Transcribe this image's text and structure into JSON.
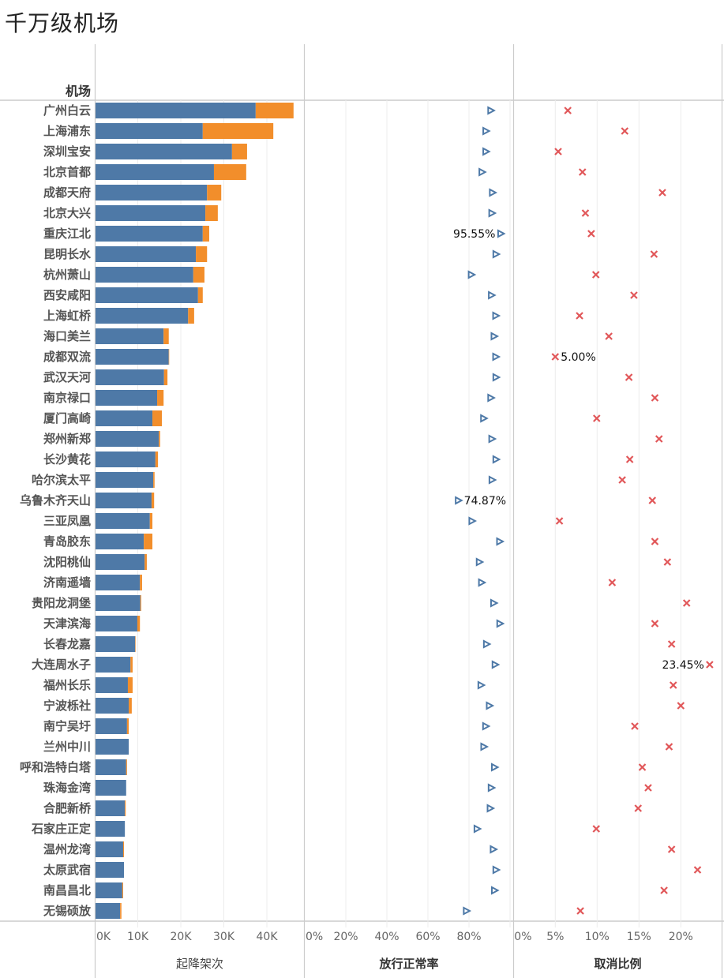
{
  "title": "千万级机场",
  "chart_data": [
    {
      "type": "bar",
      "stacked": true,
      "orientation": "horizontal",
      "title": "千万级机场",
      "row_header": "机场",
      "xlabel": "起降架次",
      "xlim": [
        0,
        48000
      ],
      "xticks": [
        "0K",
        "10K",
        "20K",
        "30K",
        "40K"
      ],
      "grid": true,
      "categories": [
        "广州白云",
        "上海浦东",
        "深圳宝安",
        "北京首都",
        "成都天府",
        "北京大兴",
        "重庆江北",
        "昆明长水",
        "杭州萧山",
        "西安咸阳",
        "上海虹桥",
        "海口美兰",
        "成都双流",
        "武汉天河",
        "南京禄口",
        "厦门高崎",
        "郑州新郑",
        "长沙黄花",
        "哈尔滨太平",
        "乌鲁木齐天山",
        "三亚凤凰",
        "青岛胶东",
        "沈阳桃仙",
        "济南遥墙",
        "贵阳龙洞堡",
        "天津滨海",
        "长春龙嘉",
        "大连周水子",
        "福州长乐",
        "宁波栎社",
        "南宁吴圩",
        "兰州中川",
        "呼和浩特白塔",
        "珠海金湾",
        "合肥新桥",
        "石家庄正定",
        "温州龙湾",
        "太原武宿",
        "南昌昌北",
        "无锡硕放"
      ],
      "series": [
        {
          "name": "series-1",
          "color": "#4e79a7",
          "values": [
            37400,
            25100,
            31900,
            27700,
            26100,
            25700,
            25100,
            23500,
            22900,
            24000,
            21700,
            16000,
            17200,
            16100,
            14500,
            13400,
            14900,
            14100,
            13600,
            13200,
            12800,
            11400,
            11600,
            10500,
            10600,
            9900,
            9400,
            8300,
            7700,
            7900,
            7500,
            7900,
            7300,
            7300,
            7000,
            7000,
            6600,
            6800,
            6400,
            5900
          ]
        },
        {
          "name": "series-2",
          "color": "#f28e2b",
          "values": [
            8800,
            16400,
            3500,
            7500,
            3300,
            2900,
            1500,
            2600,
            2600,
            1100,
            1400,
            1200,
            100,
            800,
            1500,
            2200,
            300,
            600,
            300,
            600,
            600,
            2000,
            500,
            500,
            200,
            600,
            100,
            500,
            1100,
            700,
            400,
            0,
            200,
            0,
            200,
            0,
            200,
            0,
            200,
            300
          ]
        }
      ]
    },
    {
      "type": "scatter",
      "xlabel": "放行正常率",
      "xlim": [
        0,
        101.5
      ],
      "xticks": [
        "0%",
        "20%",
        "40%",
        "60%",
        "80%"
      ],
      "grid": true,
      "marker": "triangle-right",
      "color": "#4e79a7",
      "values": [
        90.7,
        88.3,
        88.3,
        86.4,
        91.5,
        91.2,
        95.55,
        93.2,
        81.2,
        91.0,
        93.1,
        92.3,
        93.1,
        93.2,
        90.7,
        87.2,
        91.2,
        93.2,
        91.3,
        74.87,
        81.5,
        95.0,
        85.1,
        86.2,
        92.1,
        95.1,
        88.6,
        92.8,
        85.9,
        90.0,
        88.2,
        87.3,
        92.5,
        90.9,
        90.4,
        84.0,
        91.9,
        93.2,
        92.5,
        78.8
      ],
      "annotations": [
        {
          "category": "重庆江北",
          "text": "95.55%",
          "side": "left"
        },
        {
          "category": "乌鲁木齐天山",
          "text": "74.87%",
          "side": "right"
        }
      ]
    },
    {
      "type": "scatter",
      "xlabel": "取消比例",
      "xlim": [
        0,
        24.9
      ],
      "xticks": [
        "0%",
        "5%",
        "10%",
        "15%",
        "20%"
      ],
      "grid": true,
      "marker": "x",
      "color": "#e15759",
      "values": [
        6.5,
        13.3,
        5.35,
        8.25,
        17.8,
        8.6,
        9.3,
        16.8,
        9.85,
        14.4,
        7.9,
        11.4,
        5.0,
        13.8,
        16.9,
        9.95,
        17.4,
        13.9,
        13.0,
        16.6,
        5.5,
        16.9,
        18.4,
        11.8,
        20.7,
        16.9,
        18.9,
        23.45,
        19.1,
        20.0,
        14.5,
        18.6,
        15.4,
        16.1,
        14.9,
        9.9,
        18.9,
        22.0,
        18.0,
        8.0
      ],
      "annotations": [
        {
          "category": "成都双流",
          "text": "5.00%",
          "side": "right"
        },
        {
          "category": "大连周水子",
          "text": "23.45%",
          "side": "left"
        }
      ]
    }
  ]
}
